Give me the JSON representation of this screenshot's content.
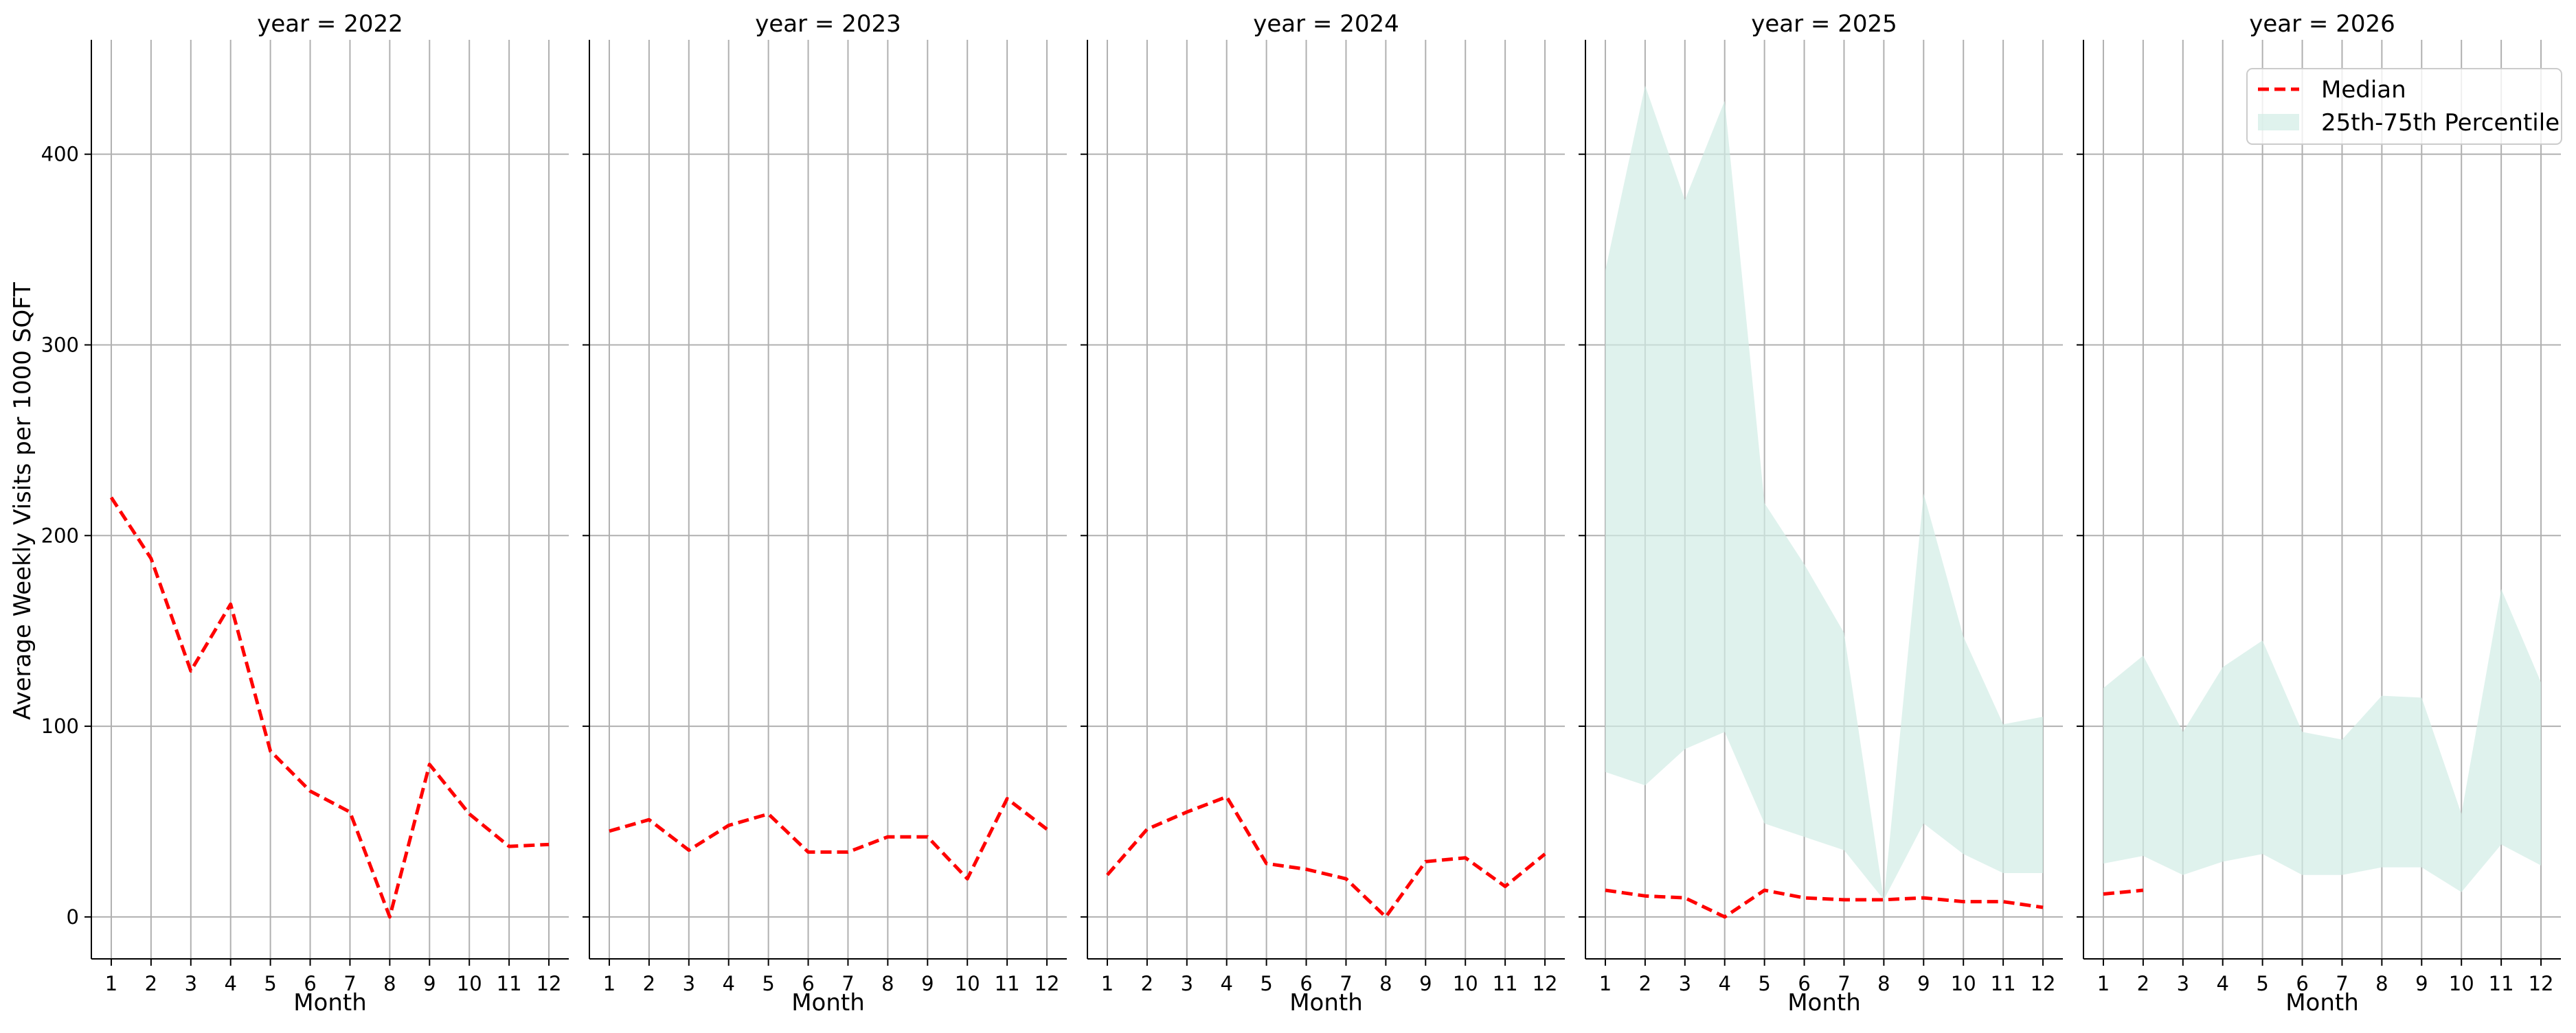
{
  "chart_data": {
    "type": "line",
    "ylabel": "Average Weekly Visits per 1000 SQFT",
    "xlabel": "Month",
    "x": [
      1,
      2,
      3,
      4,
      5,
      6,
      7,
      8,
      9,
      10,
      11,
      12
    ],
    "xticks": [
      "1",
      "2",
      "3",
      "4",
      "5",
      "6",
      "7",
      "8",
      "9",
      "10",
      "11",
      "12"
    ],
    "xlim": [
      0.5,
      12.5
    ],
    "ylim": [
      -22,
      460
    ],
    "yticks": [
      0,
      100,
      200,
      300,
      400
    ],
    "ytick_labels": [
      "0",
      "100",
      "200",
      "300",
      "400"
    ],
    "grid": true,
    "legend": {
      "placement": "top-right",
      "entries": [
        "Median",
        "25th-75th Percentile"
      ]
    },
    "colors": {
      "median": "#ff0000",
      "band": "#d2ede6",
      "grid": "#b0b0b0",
      "axis": "#000000"
    },
    "facets": [
      {
        "title": "year = 2022",
        "median": [
          220,
          188,
          129,
          164,
          87,
          66,
          55,
          0,
          80,
          54,
          37,
          38
        ]
      },
      {
        "title": "year = 2023",
        "median": [
          45,
          51,
          35,
          48,
          54,
          34,
          34,
          42,
          42,
          20,
          62,
          46
        ]
      },
      {
        "title": "year = 2024",
        "median": [
          22,
          46,
          55,
          63,
          28,
          25,
          20,
          0,
          29,
          31,
          16,
          33
        ]
      },
      {
        "title": "year = 2025",
        "median": [
          14,
          11,
          10,
          0,
          14,
          10,
          9,
          9,
          10,
          8,
          8,
          5
        ],
        "p25": [
          76,
          69,
          88,
          97,
          49,
          42,
          35,
          9,
          49,
          33,
          23,
          23
        ],
        "p75": [
          339,
          436,
          376,
          428,
          217,
          185,
          149,
          9,
          222,
          147,
          101,
          105
        ]
      },
      {
        "title": "year = 2026",
        "median": [
          12,
          14,
          null,
          null,
          null,
          null,
          null,
          null,
          null,
          null,
          null,
          null
        ],
        "p25": [
          28,
          32,
          22,
          29,
          33,
          22,
          22,
          26,
          26,
          13,
          38,
          27
        ],
        "p75": [
          120,
          137,
          97,
          131,
          145,
          97,
          93,
          116,
          115,
          54,
          172,
          123
        ]
      }
    ]
  }
}
